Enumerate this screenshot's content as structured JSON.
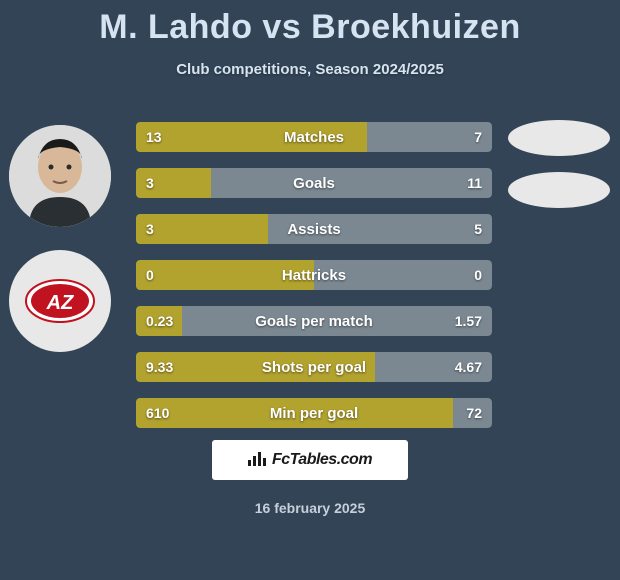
{
  "title": "M. Lahdo vs Broekhuizen",
  "subtitle": "Club competitions, Season 2024/2025",
  "footer_brand": "FcTables.com",
  "footer_date": "16 february 2025",
  "colors": {
    "left": "#b2a22e",
    "right": "#7b8892",
    "bg": "#324455"
  },
  "rows": [
    {
      "label": "Matches",
      "left_val": "13",
      "right_val": "7",
      "left_pct": 65
    },
    {
      "label": "Goals",
      "left_val": "3",
      "right_val": "11",
      "left_pct": 21
    },
    {
      "label": "Assists",
      "left_val": "3",
      "right_val": "5",
      "left_pct": 37
    },
    {
      "label": "Hattricks",
      "left_val": "0",
      "right_val": "0",
      "left_pct": 50
    },
    {
      "label": "Goals per match",
      "left_val": "0.23",
      "right_val": "1.57",
      "left_pct": 13
    },
    {
      "label": "Shots per goal",
      "left_val": "9.33",
      "right_val": "4.67",
      "left_pct": 67
    },
    {
      "label": "Min per goal",
      "left_val": "610",
      "right_val": "72",
      "left_pct": 89
    }
  ]
}
